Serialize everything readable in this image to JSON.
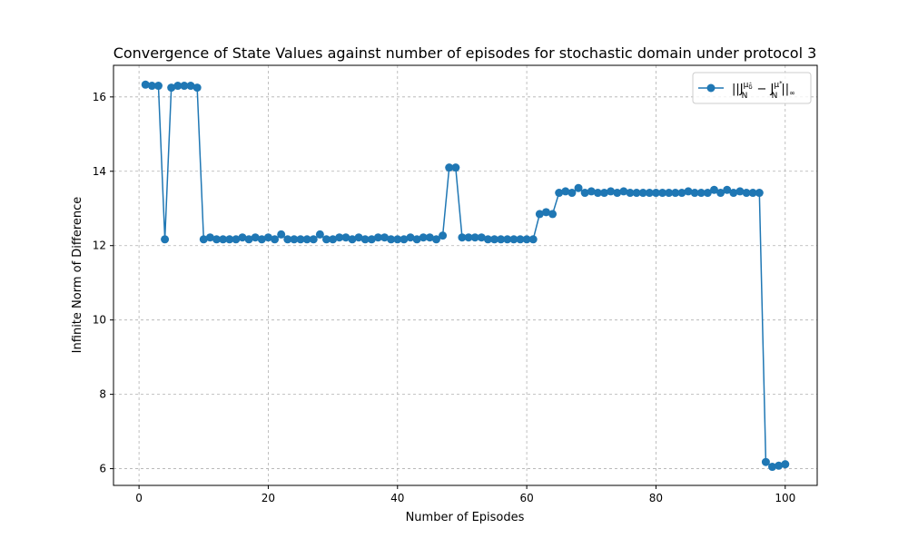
{
  "chart_data": {
    "type": "line",
    "title": "Convergence of State Values against number of episodes for stochastic domain under protocol 3",
    "xlabel": "Number of Episodes",
    "ylabel": "Infinite Norm of Difference",
    "xlim": [
      -3.95,
      104.95
    ],
    "ylim": [
      5.55,
      16.85
    ],
    "xticks": [
      0,
      20,
      40,
      60,
      80,
      100
    ],
    "yticks": [
      6,
      8,
      10,
      12,
      14,
      16
    ],
    "xtick_labels": [
      "0",
      "20",
      "40",
      "60",
      "80",
      "100"
    ],
    "ytick_labels": [
      "6",
      "8",
      "10",
      "12",
      "14",
      "16"
    ],
    "grid": true,
    "grid_style": "dashed",
    "legend_position": "top-right",
    "series": [
      {
        "name": "||J_N^{μ_δ̂} − J_N^{μ*}||_∞",
        "color": "#1f77b4",
        "marker": "circle",
        "x": [
          1,
          2,
          3,
          4,
          5,
          6,
          7,
          8,
          9,
          10,
          11,
          12,
          13,
          14,
          15,
          16,
          17,
          18,
          19,
          20,
          21,
          22,
          23,
          24,
          25,
          26,
          27,
          28,
          29,
          30,
          31,
          32,
          33,
          34,
          35,
          36,
          37,
          38,
          39,
          40,
          41,
          42,
          43,
          44,
          45,
          46,
          47,
          48,
          49,
          50,
          51,
          52,
          53,
          54,
          55,
          56,
          57,
          58,
          59,
          60,
          61,
          62,
          63,
          64,
          65,
          66,
          67,
          68,
          69,
          70,
          71,
          72,
          73,
          74,
          75,
          76,
          77,
          78,
          79,
          80,
          81,
          82,
          83,
          84,
          85,
          86,
          87,
          88,
          89,
          90,
          91,
          92,
          93,
          94,
          95,
          96,
          97,
          98,
          99,
          100
        ],
        "values": [
          16.33,
          16.3,
          16.3,
          12.17,
          16.25,
          16.3,
          16.3,
          16.3,
          16.25,
          12.17,
          12.22,
          12.17,
          12.17,
          12.17,
          12.17,
          12.22,
          12.17,
          12.22,
          12.17,
          12.22,
          12.17,
          12.3,
          12.17,
          12.17,
          12.17,
          12.17,
          12.17,
          12.3,
          12.17,
          12.17,
          12.22,
          12.22,
          12.17,
          12.22,
          12.17,
          12.17,
          12.22,
          12.22,
          12.17,
          12.17,
          12.17,
          12.22,
          12.17,
          12.22,
          12.22,
          12.17,
          12.27,
          14.1,
          14.1,
          12.22,
          12.22,
          12.22,
          12.22,
          12.17,
          12.17,
          12.17,
          12.17,
          12.17,
          12.17,
          12.17,
          12.17,
          12.85,
          12.9,
          12.85,
          13.42,
          13.46,
          13.42,
          13.55,
          13.42,
          13.46,
          13.42,
          13.42,
          13.46,
          13.42,
          13.46,
          13.42,
          13.42,
          13.42,
          13.42,
          13.42,
          13.42,
          13.42,
          13.42,
          13.42,
          13.46,
          13.42,
          13.42,
          13.42,
          13.5,
          13.42,
          13.5,
          13.42,
          13.46,
          13.42,
          13.42,
          13.42,
          6.18,
          6.05,
          6.08,
          6.12
        ]
      }
    ]
  },
  "legend": {
    "line1_main": "||J",
    "line1_sup": "μ",
    "line1_supsub": "δ̂",
    "line1_sub": "N",
    "line1_minus": " − J",
    "line2_sup": "μ",
    "line2_supsup": "*",
    "line2_sub": "N",
    "line2_tail": "||",
    "line2_inf": "∞"
  }
}
